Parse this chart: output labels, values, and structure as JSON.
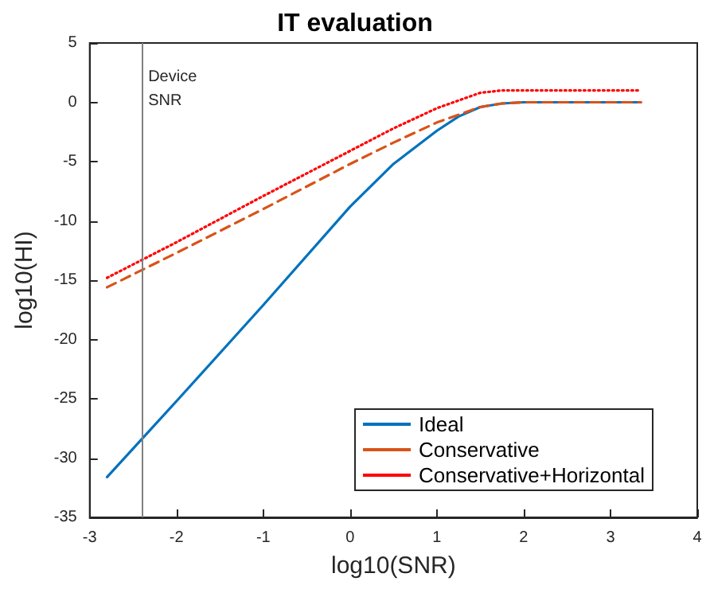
{
  "chart_data": {
    "type": "line",
    "title": "IT evaluation",
    "xlabel": "log10(SNR)",
    "ylabel": "log10(HI)",
    "xlim": [
      -3,
      4
    ],
    "xticks": [
      -3,
      -2,
      -1,
      0,
      1,
      2,
      3,
      4
    ],
    "ylim": [
      -35,
      5
    ],
    "yticks": [
      -35,
      -30,
      -25,
      -20,
      -15,
      -10,
      -5,
      0,
      5
    ],
    "grid": false,
    "legend": "bottom right",
    "marker": "none",
    "ref_lines": [
      {
        "axis": "x",
        "value": -2.4,
        "label": "Device\nSNR",
        "color": "#808080"
      }
    ],
    "series": [
      {
        "name": "Ideal",
        "color": "#0072bd",
        "line_style": "solid",
        "x": [
          -2.8,
          -2,
          -1,
          0,
          0.5,
          1,
          1.25,
          1.5,
          1.75,
          2,
          2.5,
          3,
          3.35
        ],
        "values": [
          -31.6,
          -25.2,
          -17.1,
          -8.8,
          -5.2,
          -2.4,
          -1.2,
          -0.4,
          -0.1,
          0,
          0,
          0,
          0
        ]
      },
      {
        "name": "Conservative",
        "color": "#d95319",
        "line_style": "dashed",
        "x": [
          -2.8,
          -2,
          -1,
          0,
          0.5,
          1,
          1.5,
          1.75,
          2,
          3.35
        ],
        "values": [
          -15.6,
          -12.7,
          -9.0,
          -5.2,
          -3.4,
          -1.7,
          -0.4,
          -0.1,
          0,
          0
        ]
      },
      {
        "name": "Conservative+Horizontal",
        "color": "#ff0000",
        "line_style": "dotted",
        "x": [
          -2.8,
          -2,
          -1,
          0,
          0.5,
          1,
          1.5,
          1.75,
          2,
          3.35
        ],
        "values": [
          -14.8,
          -11.8,
          -7.9,
          -4.1,
          -2.2,
          -0.5,
          0.8,
          1.0,
          1,
          1
        ]
      }
    ]
  }
}
